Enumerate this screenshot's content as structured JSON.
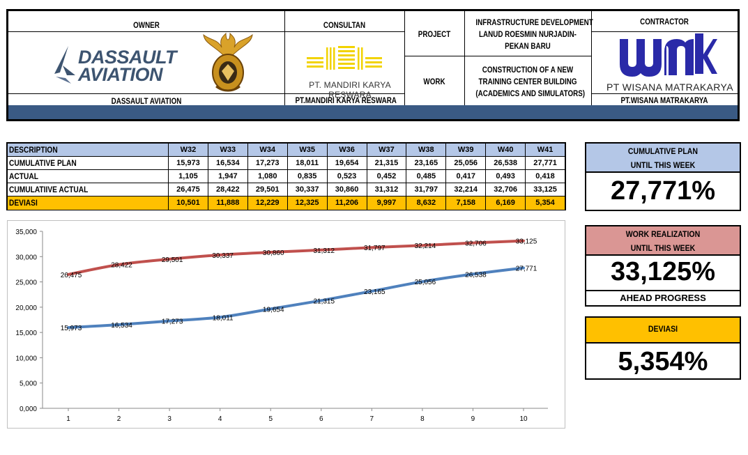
{
  "header": {
    "owner_label": "OWNER",
    "owner_name": "DASSAULT AVIATION",
    "owner_logo_text_line1": "DASSAULT",
    "owner_logo_text_line2": "AVIATION",
    "consultant_label": "CONSULTAN",
    "consultant_logo_text": "PT. MANDIRI KARYA RESWARA",
    "consultant_name": "PT.MANDIRI KARYA RESWARA",
    "project_label": "PROJECT",
    "project_line1": "INFRASTRUCTURE DEVELOPMENT",
    "project_line2": "LANUD ROESMIN NURJADIN-",
    "project_line3": "PEKAN BARU",
    "work_label": "WORK",
    "work_line1": "CONSTRUCTION OF A NEW",
    "work_line2": "TRAINING CENTER BUILDING",
    "work_line3": "(ACADEMICS AND SIMULATORS)",
    "contractor_label": "CONTRACTOR",
    "contractor_logo_text": "PT WISANA MATRAKARYA",
    "contractor_name": "PT.WISANA MATRAKARYA"
  },
  "table": {
    "header_label": "DESCRIPTION",
    "weeks": [
      "W32",
      "W33",
      "W34",
      "W35",
      "W36",
      "W37",
      "W38",
      "W39",
      "W40",
      "W41"
    ],
    "rows": [
      {
        "label": "CUMULATIVE PLAN",
        "values": [
          "15,973",
          "16,534",
          "17,273",
          "18,011",
          "19,654",
          "21,315",
          "23,165",
          "25,056",
          "26,538",
          "27,771"
        ]
      },
      {
        "label": "ACTUAL",
        "values": [
          "1,105",
          "1,947",
          "1,080",
          "0,835",
          "0,523",
          "0,452",
          "0,485",
          "0,417",
          "0,493",
          "0,418"
        ]
      },
      {
        "label": "CUMULATIIVE ACTUAL",
        "values": [
          "26,475",
          "28,422",
          "29,501",
          "30,337",
          "30,860",
          "31,312",
          "31,797",
          "32,214",
          "32,706",
          "33,125"
        ]
      },
      {
        "label": "DEVIASI",
        "values": [
          "10,501",
          "11,888",
          "12,229",
          "12,325",
          "11,206",
          "9,997",
          "8,632",
          "7,158",
          "6,169",
          "5,354"
        ]
      }
    ],
    "colors": {
      "header_bg": "#b4c7e7",
      "deviasi_bg": "#ffc000"
    }
  },
  "kpi": {
    "plan_line1": "CUMULATIVE PLAN",
    "plan_line2": "UNTIL THIS WEEK",
    "plan_value": "27,771%",
    "plan_color": "#b4c7e7",
    "real_line1": "WORK REALIZATION",
    "real_line2": "UNTIL THIS WEEK",
    "real_value": "33,125%",
    "real_color": "#da9694",
    "ahead_label": "AHEAD PROGRESS",
    "dev_label": "DEVIASI",
    "dev_value": "5,354%",
    "dev_color": "#ffc000"
  },
  "chart_data": {
    "type": "line",
    "categories": [
      "1",
      "2",
      "3",
      "4",
      "5",
      "6",
      "7",
      "8",
      "9",
      "10"
    ],
    "series": [
      {
        "values": [
          15.973,
          16.534,
          17.273,
          18.011,
          19.654,
          21.315,
          23.165,
          25.056,
          26.538,
          27.771
        ],
        "labels": [
          "15,973",
          "16,534",
          "17,273",
          "18,011",
          "19,654",
          "21,315",
          "23,165",
          "25,056",
          "26,538",
          "27,771"
        ],
        "color": "#4f81bd"
      },
      {
        "values": [
          26.475,
          28.422,
          29.501,
          30.337,
          30.86,
          31.312,
          31.797,
          32.214,
          32.706,
          33.125
        ],
        "labels": [
          "26,475",
          "28,422",
          "29,501",
          "30,337",
          "30,860",
          "31,312",
          "31,797",
          "32,214",
          "32,706",
          "33,125"
        ],
        "color": "#c0504d"
      }
    ],
    "yticks": [
      "0,000",
      "5,000",
      "10,000",
      "15,000",
      "20,000",
      "25,000",
      "30,000",
      "35,000"
    ],
    "ylim": [
      0,
      35
    ],
    "grid": false,
    "legend": "none"
  }
}
